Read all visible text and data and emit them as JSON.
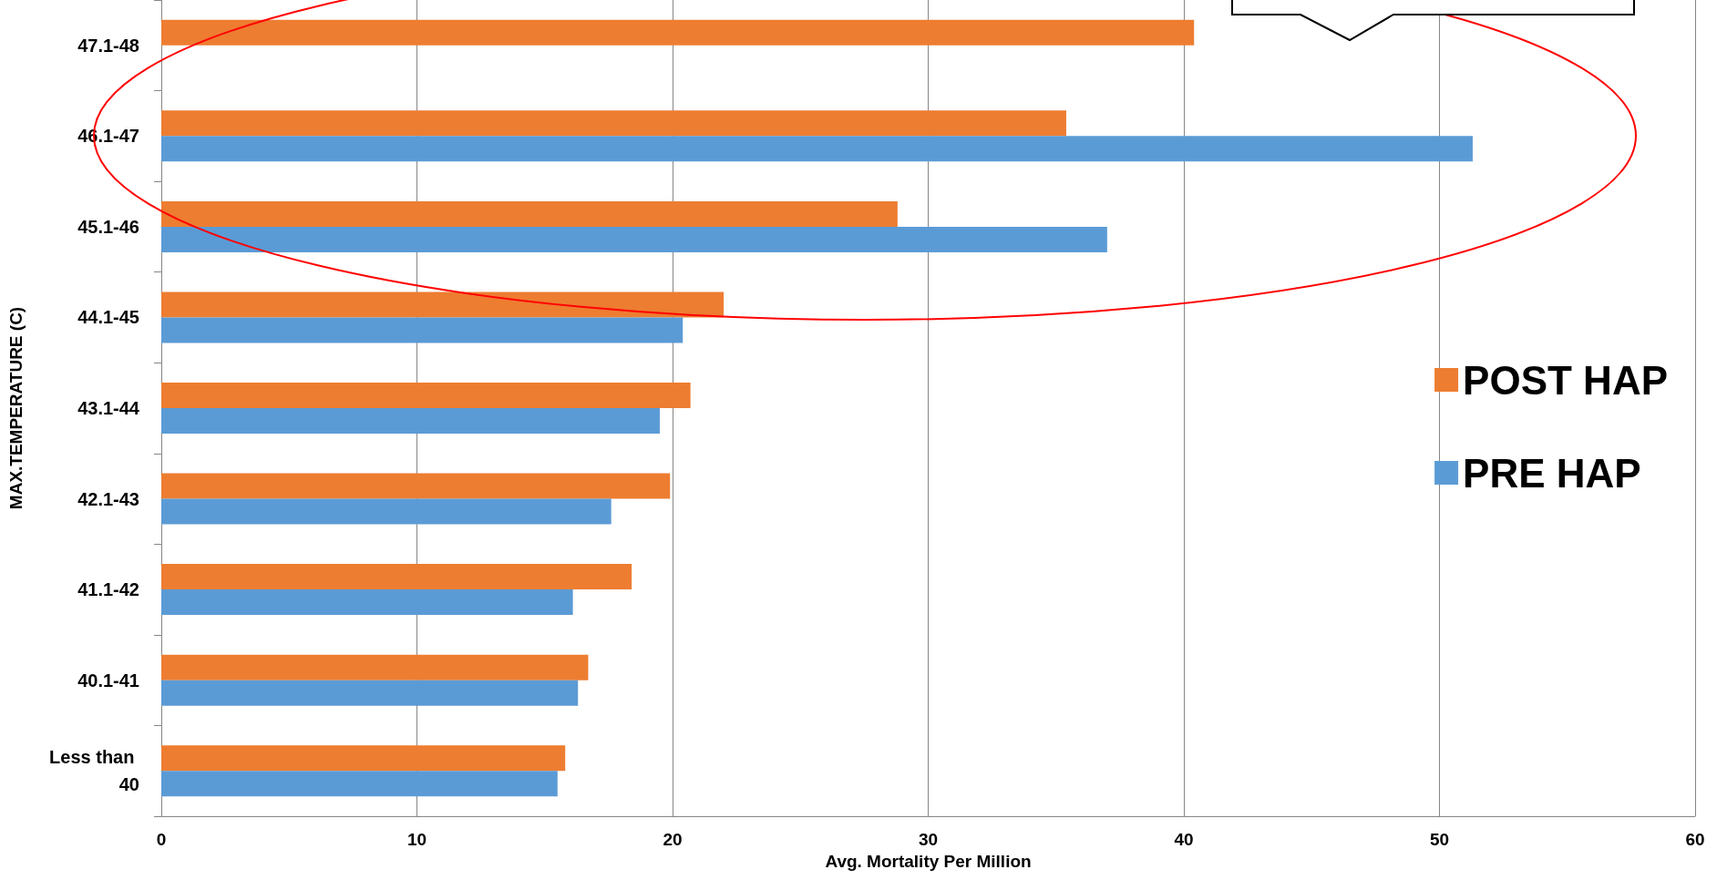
{
  "chart_data": {
    "type": "bar",
    "orientation": "horizontal",
    "xlabel": "Avg. Mortality Per Million",
    "ylabel": "MAX.TEMPERATURE (C)",
    "categories": [
      "47.1-48",
      "46.1-47",
      "45.1-46",
      "44.1-45",
      "43.1-44",
      "42.1-43",
      "41.1-42",
      "40.1-41",
      "Less than 40"
    ],
    "series": [
      {
        "name": "POST HAP",
        "color": "#ed7d31",
        "values": [
          40.4,
          35.4,
          28.8,
          22.0,
          20.7,
          19.9,
          18.4,
          16.7,
          15.8
        ]
      },
      {
        "name": "PRE HAP",
        "color": "#5b9bd5",
        "values": [
          null,
          51.3,
          37.0,
          20.4,
          19.5,
          17.6,
          16.1,
          16.3,
          15.5
        ]
      }
    ],
    "xlim": [
      0,
      60
    ],
    "xticks": [
      0,
      10,
      20,
      30,
      40,
      50,
      60
    ],
    "grid": "x",
    "legend": "right"
  }
}
